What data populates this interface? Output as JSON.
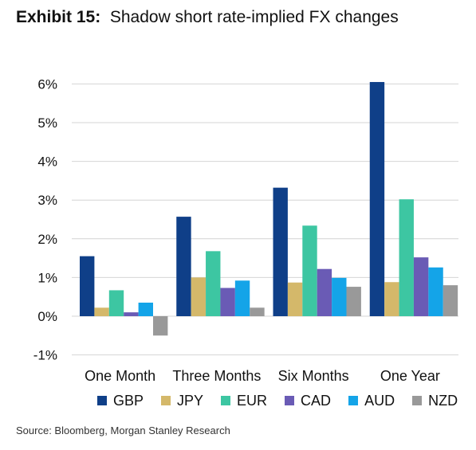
{
  "header": {
    "exhibit_label": "Exhibit 15:",
    "title": "Shadow short rate-implied FX changes"
  },
  "source": "Source: Bloomberg, Morgan Stanley Research",
  "chart_data": {
    "type": "bar",
    "title": "Shadow short rate-implied FX changes",
    "xlabel": "",
    "ylabel": "",
    "categories": [
      "One Month",
      "Three Months",
      "Six Months",
      "One Year"
    ],
    "ylim": [
      -1,
      6
    ],
    "yticks": [
      -1,
      0,
      1,
      2,
      3,
      4,
      5,
      6
    ],
    "ytick_labels": [
      "-1%",
      "0%",
      "1%",
      "2%",
      "3%",
      "4%",
      "5%",
      "6%"
    ],
    "grid": true,
    "legend_position": "bottom",
    "series": [
      {
        "name": "GBP",
        "color": "#0f3f88",
        "values": [
          1.55,
          2.57,
          3.32,
          6.05
        ]
      },
      {
        "name": "JPY",
        "color": "#d4b86a",
        "values": [
          0.22,
          1.0,
          0.87,
          0.88
        ]
      },
      {
        "name": "EUR",
        "color": "#3dc6a2",
        "values": [
          0.67,
          1.68,
          2.34,
          3.02
        ]
      },
      {
        "name": "CAD",
        "color": "#6a5bb5",
        "values": [
          0.1,
          0.73,
          1.22,
          1.52
        ]
      },
      {
        "name": "AUD",
        "color": "#14a4e8",
        "values": [
          0.35,
          0.92,
          0.99,
          1.26
        ]
      },
      {
        "name": "NZD",
        "color": "#999999",
        "values": [
          -0.5,
          0.22,
          0.76,
          0.8
        ]
      }
    ]
  }
}
